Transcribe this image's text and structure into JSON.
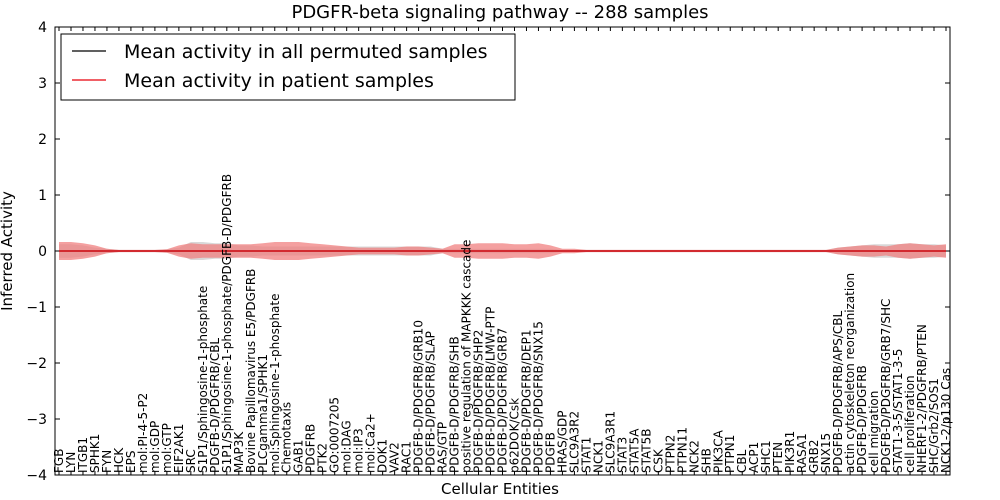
{
  "chart_data": {
    "type": "line",
    "title": "PDGFR-beta signaling pathway -- 288 samples",
    "xlabel": "Cellular Entities",
    "ylabel": "Inferred Activity",
    "ylim": [
      -4,
      4
    ],
    "yticks": [
      "4",
      "3",
      "2",
      "1",
      "0",
      "−1",
      "−2",
      "−3",
      "−4"
    ],
    "legend_position": "top-left",
    "colors": {
      "permuted": "#000000",
      "patient": "#e8000b",
      "patient_band": "#f08080",
      "permuted_band": "#c8c8c8"
    },
    "entities": [
      "FGB",
      "LYN",
      "ITGB1",
      "SPHK1",
      "FYN",
      "HCK",
      "EPS",
      "mol:PI-4-5-P2",
      "mol:GDP",
      "mol:GTP",
      "EIF2AK1",
      "SRC",
      "S1P1/Sphingosine-1-phosphate",
      "PDGFB-D/PDGFRB/CBL",
      "S1P1/Sphingosine-1-phosphate/PDGFB-D/PDGFRB",
      "MAP3K",
      "Bovine Papillomavirus E5/PDGFRB",
      "PLCgamma1/SPHK1",
      "mol:Sphingosine-1-phosphate",
      "Chemotaxis",
      "GAB1",
      "PDGFRB",
      "PTK2",
      "GO:0007205",
      "mol:DAG",
      "mol:IP3",
      "mol:Ca2+",
      "DOK1",
      "VAV2",
      "RAC1",
      "PDGFB-D/PDGFRB/GRB10",
      "PDGFB-D/PDGFRB/SLAP",
      "RAS/GTP",
      "PDGFB-D/PDGFRB/SHB",
      "positive regulation of MAPKKK cascade",
      "PDGFB-D/PDGFRB/SHP2",
      "PDGFB-D/PDGFRB/LMW-PTP",
      "PDGFB-D/PDGFRB/GRB7",
      "p62DOK/Csk",
      "PDGFB-D/PDGFRB/DEP1",
      "PDGFB-D/PDGFRB/SNX15",
      "PDGFB",
      "HRAS/GDP",
      "SLC9A3R2",
      "STAT1",
      "NCK1",
      "SLC9A3R1",
      "STAT3",
      "STAT5A",
      "STAT5B",
      "CSK",
      "PTPN2",
      "PTPN11",
      "NCK2",
      "SHB",
      "PIK3CA",
      "PTPN1",
      "CBL",
      "ACP1",
      "SHC1",
      "PTEN",
      "PIK3R1",
      "RASA1",
      "GRB2",
      "SNX15",
      "PDGFB-D/PDGFRB/APS/CBL",
      "actin cytoskeleton reorganization",
      "PDGFB-D/PDGFRB",
      "cell migration",
      "PDGFB-D/PDGFRB/GRB7/SHC",
      "STAT1-3-5/STAT1-3-5",
      "cell proliferation",
      "NHERF1-2/PDGFRB/PTEN",
      "SHC/Grb2/SOS1",
      "NCK1-2/p130 Cas"
    ],
    "patient_mean": [
      0,
      0,
      0,
      0,
      0,
      0,
      0,
      0,
      0,
      0,
      0,
      0,
      0,
      0,
      0,
      0,
      0,
      0,
      0,
      0,
      0,
      0,
      0,
      0,
      0,
      0,
      0,
      0,
      0,
      0,
      0,
      0,
      0,
      0,
      0,
      0,
      0,
      0,
      0,
      0,
      0,
      0,
      0,
      0,
      0,
      0,
      0,
      0,
      0,
      0,
      0,
      0,
      0,
      0,
      0,
      0,
      0,
      0,
      0,
      0,
      0,
      0,
      0,
      0,
      0,
      0,
      0,
      0,
      0,
      0,
      0,
      0,
      0,
      0,
      0
    ],
    "patient_band": [
      0.16,
      0.16,
      0.14,
      0.1,
      0.04,
      0.02,
      0.02,
      0.02,
      0.02,
      0.03,
      0.1,
      0.14,
      0.12,
      0.12,
      0.12,
      0.12,
      0.12,
      0.14,
      0.16,
      0.16,
      0.16,
      0.14,
      0.12,
      0.1,
      0.08,
      0.06,
      0.06,
      0.06,
      0.06,
      0.08,
      0.08,
      0.06,
      0.04,
      0.12,
      0.12,
      0.14,
      0.14,
      0.14,
      0.12,
      0.12,
      0.14,
      0.1,
      0.04,
      0.04,
      0.02,
      0.02,
      0.02,
      0.02,
      0.02,
      0.02,
      0.02,
      0.02,
      0.02,
      0.02,
      0.02,
      0.02,
      0.02,
      0.02,
      0.02,
      0.02,
      0.02,
      0.02,
      0.02,
      0.02,
      0.02,
      0.06,
      0.08,
      0.1,
      0.1,
      0.08,
      0.12,
      0.14,
      0.12,
      0.1,
      0.12
    ],
    "permuted_mean": [
      0,
      0,
      0,
      0,
      0,
      0,
      0,
      0,
      0,
      0,
      0,
      0,
      0,
      0,
      0,
      0,
      0,
      0,
      0,
      0,
      0,
      0,
      0,
      0,
      0,
      0,
      0,
      0,
      0,
      0,
      0,
      0,
      0,
      0,
      0,
      0,
      0,
      0,
      0,
      0,
      0,
      0,
      0,
      0,
      0,
      0,
      0,
      0,
      0,
      0,
      0,
      0,
      0,
      0,
      0,
      0,
      0,
      0,
      0,
      0,
      0,
      0,
      0,
      0,
      0,
      0,
      0,
      0,
      0,
      0,
      0,
      0,
      0,
      0,
      0
    ],
    "permuted_band": [
      0.12,
      0.12,
      0.1,
      0.06,
      0.04,
      0.02,
      0.02,
      0.02,
      0.02,
      0.03,
      0.06,
      0.16,
      0.16,
      0.14,
      0.14,
      0.1,
      0.1,
      0.08,
      0.08,
      0.08,
      0.08,
      0.08,
      0.08,
      0.08,
      0.08,
      0.08,
      0.08,
      0.08,
      0.08,
      0.08,
      0.08,
      0.08,
      0.04,
      0.04,
      0.04,
      0.04,
      0.04,
      0.04,
      0.04,
      0.04,
      0.04,
      0.04,
      0.02,
      0.02,
      0.02,
      0.02,
      0.02,
      0.02,
      0.02,
      0.02,
      0.02,
      0.02,
      0.02,
      0.02,
      0.02,
      0.02,
      0.02,
      0.02,
      0.02,
      0.02,
      0.02,
      0.02,
      0.02,
      0.02,
      0.02,
      0.06,
      0.08,
      0.1,
      0.12,
      0.12,
      0.12,
      0.14,
      0.12,
      0.12,
      0.1
    ],
    "series": [
      {
        "name": "Mean activity in all permuted samples",
        "color": "#000000"
      },
      {
        "name": "Mean activity in patient samples",
        "color": "#e8000b"
      }
    ]
  }
}
